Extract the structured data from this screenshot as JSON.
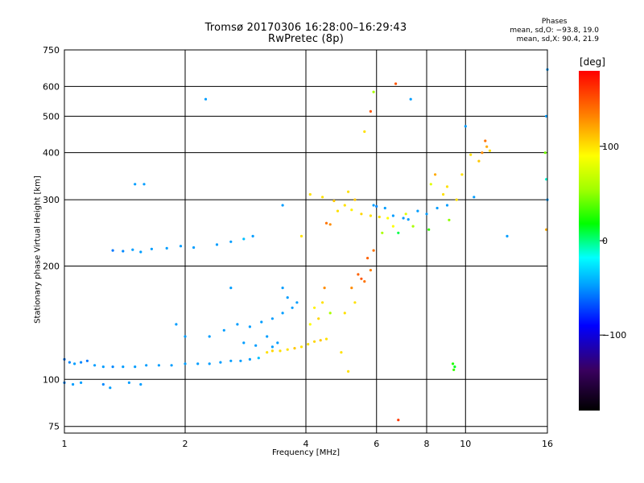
{
  "title_line1": "Tromsø 20170306 16:28:00–16:29:43",
  "title_line2": "RwPretec (8p)",
  "phases": {
    "title": "Phases",
    "line_o": "mean, sd,O: −93.8, 19.0",
    "line_x": "mean, sd,X:  90.4, 21.9"
  },
  "colorbar": {
    "unit": "[deg]",
    "range": [
      -180,
      180
    ],
    "ticks": [
      {
        "value": 100,
        "label": "100"
      },
      {
        "value": 0,
        "label": "0"
      },
      {
        "value": -100,
        "label": "−100"
      }
    ]
  },
  "chart_data": {
    "type": "scatter",
    "xlabel": "Frequency [MHz]",
    "ylabel": "Stationary phase Virtual Height [km]",
    "x_scale": "log",
    "y_scale": "log",
    "xlim": [
      1,
      16
    ],
    "ylim": [
      72,
      750
    ],
    "grid": true,
    "xticks": [
      {
        "value": 1,
        "label": "1"
      },
      {
        "value": 2,
        "label": "2"
      },
      {
        "value": 4,
        "label": "4"
      },
      {
        "value": 6,
        "label": "6"
      },
      {
        "value": 8,
        "label": "8"
      },
      {
        "value": 10,
        "label": "10"
      },
      {
        "value": 16,
        "label": "16"
      }
    ],
    "yticks": [
      {
        "value": 75,
        "label": "75"
      },
      {
        "value": 100,
        "label": "100"
      },
      {
        "value": 200,
        "label": "200"
      },
      {
        "value": 300,
        "label": "300"
      },
      {
        "value": 400,
        "label": "400"
      },
      {
        "value": 500,
        "label": "500"
      },
      {
        "value": 600,
        "label": "600"
      },
      {
        "value": 750,
        "label": "750"
      }
    ],
    "series": [
      {
        "points": [
          {
            "x": 1.0,
            "y": 113,
            "p": -110
          },
          {
            "x": 1.03,
            "y": 111,
            "p": -105
          },
          {
            "x": 1.06,
            "y": 110,
            "p": -100
          },
          {
            "x": 1.1,
            "y": 111,
            "p": -105
          },
          {
            "x": 1.14,
            "y": 112,
            "p": -110
          },
          {
            "x": 1.19,
            "y": 109,
            "p": -100
          },
          {
            "x": 1.25,
            "y": 108,
            "p": -100
          },
          {
            "x": 1.32,
            "y": 108,
            "p": -105
          },
          {
            "x": 1.4,
            "y": 108,
            "p": -100
          },
          {
            "x": 1.5,
            "y": 108,
            "p": -100
          },
          {
            "x": 1.6,
            "y": 109,
            "p": -100
          },
          {
            "x": 1.72,
            "y": 109,
            "p": -100
          },
          {
            "x": 1.85,
            "y": 109,
            "p": -100
          },
          {
            "x": 2.0,
            "y": 110,
            "p": -100
          },
          {
            "x": 2.15,
            "y": 110,
            "p": -100
          },
          {
            "x": 2.3,
            "y": 110,
            "p": -100
          },
          {
            "x": 2.45,
            "y": 111,
            "p": -100
          },
          {
            "x": 2.6,
            "y": 112,
            "p": -100
          },
          {
            "x": 2.75,
            "y": 112,
            "p": -100
          },
          {
            "x": 2.9,
            "y": 113,
            "p": -100
          },
          {
            "x": 3.05,
            "y": 114,
            "p": -90
          },
          {
            "x": 1.0,
            "y": 98,
            "p": -105
          },
          {
            "x": 1.05,
            "y": 97,
            "p": -100
          },
          {
            "x": 1.1,
            "y": 98,
            "p": -100
          },
          {
            "x": 1.25,
            "y": 97,
            "p": -105
          },
          {
            "x": 1.3,
            "y": 95,
            "p": -100
          },
          {
            "x": 1.45,
            "y": 98,
            "p": -100
          },
          {
            "x": 1.55,
            "y": 97,
            "p": -100
          },
          {
            "x": 1.32,
            "y": 220,
            "p": -110
          },
          {
            "x": 1.4,
            "y": 219,
            "p": -105
          },
          {
            "x": 1.48,
            "y": 221,
            "p": -100
          },
          {
            "x": 1.55,
            "y": 218,
            "p": -100
          },
          {
            "x": 1.65,
            "y": 222,
            "p": -100
          },
          {
            "x": 1.8,
            "y": 223,
            "p": -100
          },
          {
            "x": 1.95,
            "y": 226,
            "p": -100
          },
          {
            "x": 2.1,
            "y": 224,
            "p": -100
          },
          {
            "x": 2.4,
            "y": 228,
            "p": -100
          },
          {
            "x": 2.6,
            "y": 232,
            "p": -100
          },
          {
            "x": 2.8,
            "y": 236,
            "p": -90
          },
          {
            "x": 2.95,
            "y": 240,
            "p": -100
          },
          {
            "x": 1.5,
            "y": 330,
            "p": -100
          },
          {
            "x": 1.58,
            "y": 330,
            "p": -100
          },
          {
            "x": 2.25,
            "y": 555,
            "p": -100
          },
          {
            "x": 2.5,
            "y": 135,
            "p": -100
          },
          {
            "x": 2.7,
            "y": 140,
            "p": -100
          },
          {
            "x": 2.9,
            "y": 138,
            "p": -100
          },
          {
            "x": 3.1,
            "y": 142,
            "p": -100
          },
          {
            "x": 3.3,
            "y": 145,
            "p": -100
          },
          {
            "x": 3.5,
            "y": 150,
            "p": -100
          },
          {
            "x": 3.6,
            "y": 165,
            "p": -100
          },
          {
            "x": 3.7,
            "y": 155,
            "p": -100
          },
          {
            "x": 3.2,
            "y": 130,
            "p": -100
          },
          {
            "x": 3.4,
            "y": 125,
            "p": -100
          },
          {
            "x": 2.8,
            "y": 125,
            "p": -100
          },
          {
            "x": 2.3,
            "y": 130,
            "p": -100
          },
          {
            "x": 3.8,
            "y": 160,
            "p": -100
          },
          {
            "x": 3.5,
            "y": 175,
            "p": -100
          },
          {
            "x": 1.9,
            "y": 140,
            "p": -100
          },
          {
            "x": 2.0,
            "y": 130,
            "p": -100
          },
          {
            "x": 3.0,
            "y": 123,
            "p": -100
          },
          {
            "x": 3.3,
            "y": 122,
            "p": -100
          },
          {
            "x": 3.5,
            "y": 290,
            "p": -100
          },
          {
            "x": 2.6,
            "y": 175,
            "p": -100
          },
          {
            "x": 3.2,
            "y": 118,
            "p": 100
          },
          {
            "x": 3.3,
            "y": 119,
            "p": 105
          },
          {
            "x": 3.45,
            "y": 119,
            "p": 100
          },
          {
            "x": 3.6,
            "y": 120,
            "p": 100
          },
          {
            "x": 3.75,
            "y": 121,
            "p": 110
          },
          {
            "x": 3.9,
            "y": 122,
            "p": 100
          },
          {
            "x": 4.05,
            "y": 124,
            "p": 100
          },
          {
            "x": 4.2,
            "y": 126,
            "p": 105
          },
          {
            "x": 4.35,
            "y": 127,
            "p": 110
          },
          {
            "x": 4.5,
            "y": 128,
            "p": 100
          },
          {
            "x": 4.1,
            "y": 140,
            "p": 90
          },
          {
            "x": 4.3,
            "y": 145,
            "p": 105
          },
          {
            "x": 4.4,
            "y": 160,
            "p": 100
          },
          {
            "x": 4.45,
            "y": 175,
            "p": 130
          },
          {
            "x": 4.2,
            "y": 155,
            "p": 95
          },
          {
            "x": 4.6,
            "y": 150,
            "p": 60
          },
          {
            "x": 4.1,
            "y": 310,
            "p": 100
          },
          {
            "x": 4.4,
            "y": 305,
            "p": 100
          },
          {
            "x": 4.7,
            "y": 298,
            "p": 110
          },
          {
            "x": 5.0,
            "y": 290,
            "p": 100
          },
          {
            "x": 5.2,
            "y": 282,
            "p": 95
          },
          {
            "x": 5.5,
            "y": 275,
            "p": 105
          },
          {
            "x": 5.8,
            "y": 272,
            "p": 100
          },
          {
            "x": 6.1,
            "y": 270,
            "p": 100
          },
          {
            "x": 6.4,
            "y": 268,
            "p": 90
          },
          {
            "x": 4.8,
            "y": 280,
            "p": 100
          },
          {
            "x": 4.5,
            "y": 260,
            "p": 140
          },
          {
            "x": 4.6,
            "y": 258,
            "p": 130
          },
          {
            "x": 5.1,
            "y": 315,
            "p": 100
          },
          {
            "x": 5.3,
            "y": 300,
            "p": 110
          },
          {
            "x": 5.4,
            "y": 190,
            "p": 145
          },
          {
            "x": 5.5,
            "y": 185,
            "p": 150
          },
          {
            "x": 5.6,
            "y": 182,
            "p": 140
          },
          {
            "x": 5.8,
            "y": 195,
            "p": 135
          },
          {
            "x": 5.7,
            "y": 210,
            "p": 145
          },
          {
            "x": 5.9,
            "y": 220,
            "p": 140
          },
          {
            "x": 6.2,
            "y": 245,
            "p": 60
          },
          {
            "x": 5.2,
            "y": 175,
            "p": 130
          },
          {
            "x": 5.9,
            "y": 290,
            "p": -100
          },
          {
            "x": 6.0,
            "y": 288,
            "p": -105
          },
          {
            "x": 6.3,
            "y": 285,
            "p": -100
          },
          {
            "x": 6.6,
            "y": 272,
            "p": -100
          },
          {
            "x": 7.0,
            "y": 268,
            "p": -100
          },
          {
            "x": 7.2,
            "y": 266,
            "p": -100
          },
          {
            "x": 7.6,
            "y": 280,
            "p": -100
          },
          {
            "x": 8.0,
            "y": 275,
            "p": -100
          },
          {
            "x": 8.5,
            "y": 285,
            "p": -100
          },
          {
            "x": 9.0,
            "y": 290,
            "p": -100
          },
          {
            "x": 9.5,
            "y": 300,
            "p": 100
          },
          {
            "x": 8.8,
            "y": 310,
            "p": 100
          },
          {
            "x": 10.5,
            "y": 305,
            "p": -100
          },
          {
            "x": 8.2,
            "y": 330,
            "p": 80
          },
          {
            "x": 8.4,
            "y": 350,
            "p": 120
          },
          {
            "x": 9.0,
            "y": 325,
            "p": 100
          },
          {
            "x": 9.8,
            "y": 350,
            "p": 100
          },
          {
            "x": 10.8,
            "y": 380,
            "p": 110
          },
          {
            "x": 11.0,
            "y": 400,
            "p": 130
          },
          {
            "x": 11.3,
            "y": 415,
            "p": 120
          },
          {
            "x": 11.5,
            "y": 405,
            "p": 100
          },
          {
            "x": 10.3,
            "y": 395,
            "p": 100
          },
          {
            "x": 10.0,
            "y": 470,
            "p": -100
          },
          {
            "x": 11.2,
            "y": 430,
            "p": 140
          },
          {
            "x": 6.6,
            "y": 255,
            "p": 90
          },
          {
            "x": 7.4,
            "y": 255,
            "p": 60
          },
          {
            "x": 8.1,
            "y": 250,
            "p": 20
          },
          {
            "x": 7.1,
            "y": 275,
            "p": 80
          },
          {
            "x": 6.8,
            "y": 245,
            "p": -20
          },
          {
            "x": 9.1,
            "y": 265,
            "p": 50
          },
          {
            "x": 12.7,
            "y": 240,
            "p": -100
          },
          {
            "x": 9.3,
            "y": 110,
            "p": 10
          },
          {
            "x": 9.35,
            "y": 106,
            "p": 20
          },
          {
            "x": 9.4,
            "y": 108,
            "p": -10
          },
          {
            "x": 6.7,
            "y": 610,
            "p": 150
          },
          {
            "x": 7.3,
            "y": 555,
            "p": -100
          },
          {
            "x": 5.8,
            "y": 515,
            "p": 150
          },
          {
            "x": 5.9,
            "y": 580,
            "p": 60
          },
          {
            "x": 6.8,
            "y": 78,
            "p": 160
          },
          {
            "x": 5.6,
            "y": 455,
            "p": 100
          },
          {
            "x": 16.0,
            "y": 665,
            "p": -100
          },
          {
            "x": 15.9,
            "y": 500,
            "p": -100
          },
          {
            "x": 15.8,
            "y": 400,
            "p": 40
          },
          {
            "x": 15.9,
            "y": 340,
            "p": -60
          },
          {
            "x": 16.0,
            "y": 300,
            "p": -100
          },
          {
            "x": 15.9,
            "y": 250,
            "p": 120
          },
          {
            "x": 5.3,
            "y": 160,
            "p": 100
          },
          {
            "x": 5.0,
            "y": 150,
            "p": 100
          },
          {
            "x": 4.9,
            "y": 118,
            "p": 100
          },
          {
            "x": 5.1,
            "y": 105,
            "p": 100
          },
          {
            "x": 3.9,
            "y": 240,
            "p": 100
          }
        ]
      }
    ]
  }
}
